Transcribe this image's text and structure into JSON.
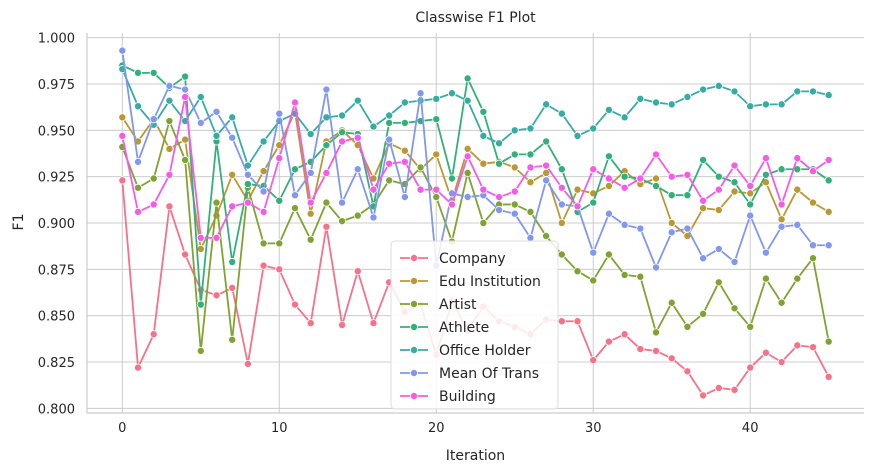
{
  "chart_data": {
    "type": "line",
    "title": "Classwise F1 Plot",
    "xlabel": "Iteration",
    "ylabel": "F1",
    "xlim": [
      -2.25,
      47.25
    ],
    "ylim": [
      0.7975,
      1.0025
    ],
    "xticks": [
      0,
      10,
      20,
      30,
      40
    ],
    "xtick_labels": [
      "0",
      "10",
      "20",
      "30",
      "40"
    ],
    "yticks": [
      0.8,
      0.825,
      0.85,
      0.875,
      0.9,
      0.925,
      0.95,
      0.975,
      1.0
    ],
    "ytick_labels": [
      "0.800",
      "0.825",
      "0.850",
      "0.875",
      "0.900",
      "0.925",
      "0.950",
      "0.975",
      "1.000"
    ],
    "grid": true,
    "legend_position": "lower center",
    "x": [
      0,
      1,
      2,
      3,
      4,
      5,
      6,
      7,
      8,
      9,
      10,
      11,
      12,
      13,
      14,
      15,
      16,
      17,
      18,
      19,
      20,
      21,
      22,
      23,
      24,
      25,
      26,
      27,
      28,
      29,
      30,
      31,
      32,
      33,
      34,
      35,
      36,
      37,
      38,
      39,
      40,
      41,
      42,
      43,
      44,
      45
    ],
    "series": [
      {
        "name": "Company",
        "color": "#f77189",
        "values": [
          0.923,
          0.822,
          0.84,
          0.909,
          0.883,
          0.864,
          0.861,
          0.865,
          0.824,
          0.877,
          0.875,
          0.856,
          0.846,
          0.898,
          0.845,
          0.874,
          0.846,
          0.868,
          0.852,
          0.856,
          0.829,
          0.858,
          0.842,
          0.855,
          0.847,
          0.844,
          0.84,
          0.848,
          0.847,
          0.847,
          0.826,
          0.836,
          0.84,
          0.832,
          0.831,
          0.827,
          0.82,
          0.807,
          0.811,
          0.81,
          0.822,
          0.83,
          0.825,
          0.834,
          0.833,
          0.817
        ]
      },
      {
        "name": "Edu Institution",
        "color": "#bb9832",
        "values": [
          0.957,
          0.944,
          0.956,
          0.94,
          0.945,
          0.886,
          0.904,
          0.926,
          0.912,
          0.928,
          0.942,
          0.96,
          0.905,
          0.944,
          0.95,
          0.942,
          0.924,
          0.943,
          0.939,
          0.929,
          0.937,
          0.912,
          0.94,
          0.932,
          0.933,
          0.93,
          0.922,
          0.927,
          0.9,
          0.918,
          0.916,
          0.92,
          0.928,
          0.921,
          0.924,
          0.9,
          0.893,
          0.908,
          0.907,
          0.917,
          0.916,
          0.922,
          0.902,
          0.918,
          0.911,
          0.906
        ]
      },
      {
        "name": "Artist",
        "color": "#7fa331",
        "values": [
          0.941,
          0.919,
          0.924,
          0.955,
          0.934,
          0.831,
          0.911,
          0.837,
          0.919,
          0.889,
          0.889,
          0.908,
          0.891,
          0.911,
          0.901,
          0.904,
          0.91,
          0.923,
          0.921,
          0.93,
          0.914,
          0.89,
          0.927,
          0.9,
          0.91,
          0.91,
          0.906,
          0.893,
          0.883,
          0.874,
          0.869,
          0.883,
          0.872,
          0.871,
          0.841,
          0.857,
          0.844,
          0.851,
          0.868,
          0.854,
          0.844,
          0.87,
          0.857,
          0.87,
          0.881,
          0.836
        ]
      },
      {
        "name": "Athlete",
        "color": "#33b07a",
        "values": [
          0.985,
          0.981,
          0.981,
          0.973,
          0.979,
          0.856,
          0.944,
          0.879,
          0.921,
          0.92,
          0.912,
          0.929,
          0.933,
          0.942,
          0.949,
          0.948,
          0.909,
          0.954,
          0.954,
          0.955,
          0.956,
          0.924,
          0.978,
          0.96,
          0.932,
          0.937,
          0.937,
          0.944,
          0.929,
          0.906,
          0.911,
          0.936,
          0.925,
          0.924,
          0.92,
          0.915,
          0.915,
          0.934,
          0.925,
          0.922,
          0.91,
          0.926,
          0.929,
          0.929,
          0.929,
          0.923
        ]
      },
      {
        "name": "Office Holder",
        "color": "#36ada4",
        "values": [
          0.983,
          0.963,
          0.953,
          0.966,
          0.955,
          0.968,
          0.947,
          0.957,
          0.931,
          0.944,
          0.955,
          0.959,
          0.948,
          0.957,
          0.958,
          0.966,
          0.952,
          0.958,
          0.965,
          0.966,
          0.967,
          0.97,
          0.966,
          0.947,
          0.943,
          0.95,
          0.951,
          0.964,
          0.959,
          0.947,
          0.951,
          0.961,
          0.957,
          0.967,
          0.965,
          0.964,
          0.968,
          0.972,
          0.974,
          0.971,
          0.963,
          0.964,
          0.964,
          0.971,
          0.971,
          0.969
        ]
      },
      {
        "name": "Mean Of Trans",
        "color": "#8197f0",
        "values": [
          0.993,
          0.933,
          0.956,
          0.974,
          0.972,
          0.954,
          0.96,
          0.946,
          0.926,
          0.917,
          0.959,
          0.915,
          0.927,
          0.972,
          0.911,
          0.929,
          0.903,
          0.945,
          0.914,
          0.97,
          0.877,
          0.916,
          0.914,
          0.915,
          0.907,
          0.905,
          0.892,
          0.923,
          0.91,
          0.909,
          0.884,
          0.905,
          0.899,
          0.897,
          0.876,
          0.895,
          0.897,
          0.881,
          0.886,
          0.879,
          0.904,
          0.884,
          0.898,
          0.899,
          0.888,
          0.888
        ]
      },
      {
        "name": "Building",
        "color": "#f55be8",
        "values": [
          0.947,
          0.906,
          0.91,
          0.926,
          0.968,
          0.892,
          0.892,
          0.909,
          0.911,
          0.906,
          0.935,
          0.965,
          0.911,
          0.927,
          0.944,
          0.946,
          0.918,
          0.932,
          0.933,
          0.918,
          0.918,
          0.91,
          0.936,
          0.918,
          0.914,
          0.917,
          0.93,
          0.931,
          0.919,
          0.909,
          0.929,
          0.924,
          0.919,
          0.924,
          0.937,
          0.925,
          0.926,
          0.912,
          0.918,
          0.931,
          0.92,
          0.935,
          0.91,
          0.935,
          0.928,
          0.934
        ]
      }
    ]
  }
}
